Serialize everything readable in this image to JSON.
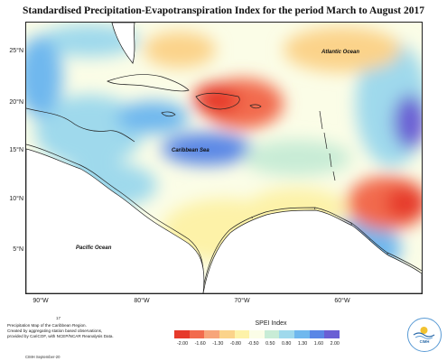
{
  "title": "Standardised Precipitation-Evapotranspiration Index for the period March to August 2017",
  "lat_ticks": [
    "25°N",
    "20°N",
    "15°N",
    "10°N",
    "5°N"
  ],
  "lon_ticks": [
    "90°W",
    "80°W",
    "70°W",
    "60°W"
  ],
  "ocean_labels": {
    "atlantic": "Atlantic Ocean",
    "caribbean": "Caribbean Sea",
    "pacific": "Pacific Ocean"
  },
  "legend": {
    "title": "SPEI Index",
    "ticks": [
      "-2.00",
      "-1.60",
      "-1.30",
      "-0.80",
      "-0.50",
      "0.50",
      "0.80",
      "1.30",
      "1.60",
      "2.00"
    ],
    "colors": [
      "#e63a2b",
      "#f26b4d",
      "#f7a57a",
      "#fbd38a",
      "#fdf2a8",
      "#fbfde7",
      "#c8ecd6",
      "#9fd9ec",
      "#6fb8ee",
      "#5a87e6",
      "#6a5fd4"
    ]
  },
  "credit": {
    "number": "17",
    "lines": [
      "Precipitation Map of the Caribbean Region.",
      "Created by aggregating station based observations,",
      "provided by CariCOF, with NCEP/NCAR Reanalysis Data."
    ],
    "date": "CIMH September-20"
  },
  "logo": {
    "text": "CIMH"
  }
}
